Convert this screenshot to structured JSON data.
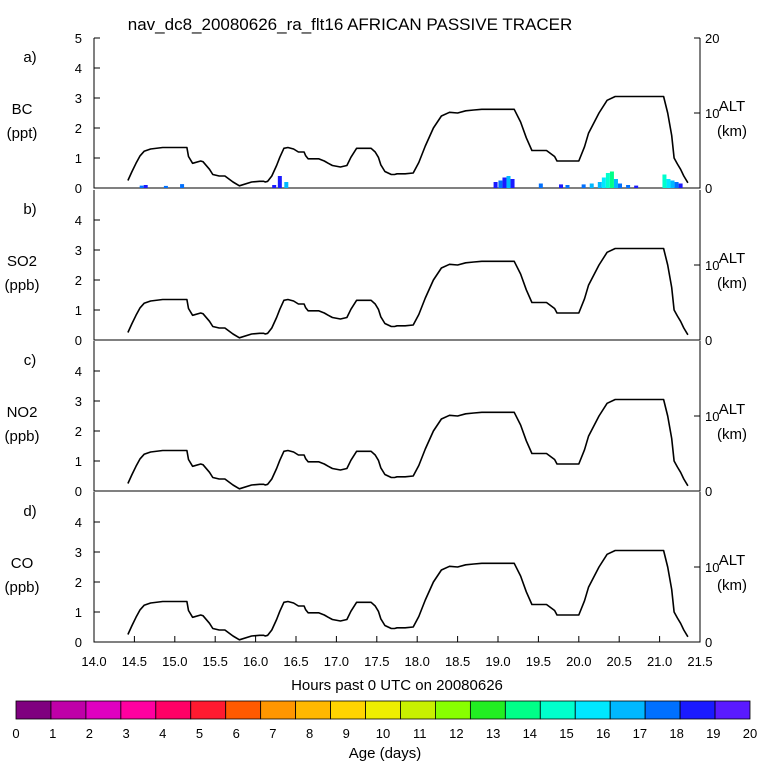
{
  "chart_data": {
    "type": "line",
    "title": "nav_dc8_20080626_ra_flt16 AFRICAN PASSIVE TRACER",
    "xlabel": "Hours past 0 UTC on 20080626",
    "xlim": [
      14.0,
      21.5
    ],
    "x_ticks": [
      "14.0",
      "14.5",
      "15.0",
      "15.5",
      "16.0",
      "16.5",
      "17.0",
      "17.5",
      "18.0",
      "18.5",
      "19.0",
      "19.5",
      "20.0",
      "20.5",
      "21.0",
      "21.5"
    ],
    "left_ylim": [
      0,
      5
    ],
    "left_ticks": [
      "0",
      "1",
      "2",
      "3",
      "4",
      "5"
    ],
    "right_axis": {
      "label": "ALT",
      "unit": "(km)",
      "ylim": [
        0,
        20
      ],
      "ticks": [
        "0",
        "10",
        "20"
      ]
    },
    "panels": [
      {
        "letter": "a)",
        "species": "BC",
        "unit": "(ppt)"
      },
      {
        "letter": "b)",
        "species": "SO2",
        "unit": "(ppb)"
      },
      {
        "letter": "c)",
        "species": "NO2",
        "unit": "(ppb)"
      },
      {
        "letter": "d)",
        "species": "CO",
        "unit": "(ppb)"
      }
    ],
    "altitude_series": {
      "name": "ALT (km)",
      "x": [
        14.42,
        14.47,
        14.52,
        14.57,
        14.62,
        14.7,
        14.85,
        15.0,
        15.15,
        15.17,
        15.22,
        15.32,
        15.35,
        15.43,
        15.47,
        15.55,
        15.62,
        15.72,
        15.8,
        15.95,
        16.05,
        16.1,
        16.12,
        16.15,
        16.2,
        16.26,
        16.3,
        16.35,
        16.4,
        16.47,
        16.53,
        16.6,
        16.62,
        16.65,
        16.72,
        16.78,
        16.85,
        16.9,
        16.95,
        17.05,
        17.13,
        17.18,
        17.25,
        17.32,
        17.38,
        17.43,
        17.48,
        17.52,
        17.55,
        17.6,
        17.68,
        17.72,
        17.75,
        17.8,
        17.85,
        17.95,
        18.02,
        18.1,
        18.2,
        18.3,
        18.4,
        18.5,
        18.6,
        18.7,
        18.8,
        18.9,
        19.0,
        19.1,
        19.2,
        19.28,
        19.35,
        19.42,
        19.45,
        19.52,
        19.6,
        19.7,
        19.73,
        19.78,
        19.82,
        19.9,
        20.0,
        20.07,
        20.12,
        20.25,
        20.35,
        20.45,
        20.55,
        20.65,
        20.75,
        20.85,
        20.95,
        21.05,
        21.1,
        21.15,
        21.18,
        21.22,
        21.26,
        21.3,
        21.35
      ],
      "y": [
        1.0,
        2.2,
        3.3,
        4.3,
        4.9,
        5.2,
        5.4,
        5.4,
        5.4,
        4.2,
        3.3,
        3.6,
        3.5,
        2.5,
        1.8,
        1.6,
        1.6,
        0.8,
        0.3,
        0.8,
        0.9,
        0.9,
        0.8,
        0.9,
        1.6,
        3.0,
        4.1,
        5.3,
        5.4,
        5.2,
        4.8,
        4.8,
        4.3,
        3.9,
        3.9,
        3.9,
        3.6,
        3.3,
        3.0,
        2.8,
        3.0,
        4.1,
        5.3,
        5.3,
        5.3,
        5.3,
        4.8,
        4.1,
        3.1,
        2.2,
        1.8,
        1.8,
        1.9,
        1.9,
        1.9,
        2.0,
        3.4,
        5.6,
        8.0,
        9.6,
        10.1,
        10.0,
        10.3,
        10.4,
        10.5,
        10.5,
        10.5,
        10.5,
        10.5,
        8.8,
        6.7,
        5.0,
        5.0,
        5.0,
        5.0,
        4.2,
        3.6,
        3.6,
        3.6,
        3.6,
        3.6,
        5.5,
        7.3,
        10.0,
        11.7,
        12.2,
        12.2,
        12.2,
        12.2,
        12.2,
        12.2,
        12.2,
        10.0,
        7.0,
        4.0,
        3.2,
        2.5,
        1.6,
        0.7
      ]
    },
    "bc_bars": {
      "description": "stacked passive-tracer contributions coloured by age",
      "x": [
        14.59,
        14.64,
        14.89,
        15.09,
        16.23,
        16.3,
        16.38,
        18.97,
        19.03,
        19.08,
        19.13,
        19.18,
        19.53,
        19.78,
        19.86,
        20.06,
        20.16,
        20.26,
        20.31,
        20.36,
        20.41,
        20.46,
        20.51,
        20.61,
        20.71,
        21.06,
        21.11,
        21.16,
        21.21,
        21.26
      ],
      "total": [
        0.08,
        0.1,
        0.07,
        0.13,
        0.1,
        0.4,
        0.2,
        0.2,
        0.25,
        0.35,
        0.4,
        0.3,
        0.15,
        0.12,
        0.1,
        0.12,
        0.15,
        0.2,
        0.35,
        0.5,
        0.55,
        0.3,
        0.15,
        0.1,
        0.08,
        0.45,
        0.3,
        0.25,
        0.2,
        0.15
      ],
      "age_days": [
        18,
        19,
        18,
        18,
        19,
        19,
        17,
        19,
        18,
        19,
        17,
        19,
        18,
        19,
        18,
        18,
        17,
        17,
        16,
        15,
        14,
        17,
        18,
        18,
        19,
        15,
        16,
        17,
        18,
        19
      ]
    },
    "colorbar": {
      "label": "Age (days)",
      "ticks": [
        "0",
        "1",
        "2",
        "3",
        "4",
        "5",
        "6",
        "7",
        "8",
        "9",
        "10",
        "11",
        "12",
        "13",
        "14",
        "15",
        "16",
        "17",
        "18",
        "19",
        "20"
      ],
      "colors": [
        "#7f007f",
        "#bf00a8",
        "#e000c0",
        "#ff00a0",
        "#ff0066",
        "#ff1a30",
        "#ff5a00",
        "#ff9600",
        "#ffb800",
        "#ffd400",
        "#eeee00",
        "#c8f000",
        "#88ff00",
        "#22ee22",
        "#00ff88",
        "#00ffcc",
        "#00e8ff",
        "#00b8ff",
        "#0070ff",
        "#1a1aff",
        "#5a1aff"
      ]
    }
  }
}
